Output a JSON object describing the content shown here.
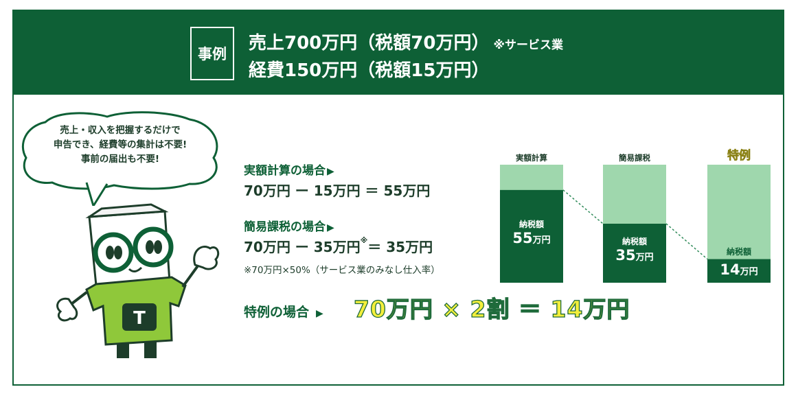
{
  "header": {
    "tag": "事例",
    "line1": "売上700万円（税額70万円）",
    "line1_note": "※サービス業",
    "line2": "経費150万円（税額15万円）"
  },
  "bubble": {
    "lines": [
      "売上・収入を把握するだけで",
      "申告でき、経費等の集計は不要!",
      "事前の届出も不要!"
    ]
  },
  "mascot": {
    "shirt_letter": "T"
  },
  "calc": {
    "actual_label": "実額計算の場合",
    "actual_expr": "70万円 ー 15万円 ＝ 55万円",
    "simple_label": "簡易課税の場合",
    "simple_expr_a": "70万円 ー 35万円",
    "simple_asterisk": "※",
    "simple_expr_b": "＝ 35万円",
    "simple_note": "※70万円×50%（サービス業のみなし仕入率）",
    "special_label": "特例の場合",
    "special_expr": "70万円 × 2割 ＝ 14万円",
    "arrow": "▶"
  },
  "chart_data": {
    "type": "bar",
    "categories": [
      "実額計算",
      "簡易課税",
      "特例"
    ],
    "bar_total": 70,
    "values": [
      55,
      35,
      14
    ],
    "value_label": "納税額",
    "value_texts": [
      "55",
      "35",
      "14"
    ],
    "unit": "万円",
    "colors": {
      "light": "#9fd7ad",
      "dark": "#0e6036",
      "special_dark": "#0e6036"
    }
  }
}
